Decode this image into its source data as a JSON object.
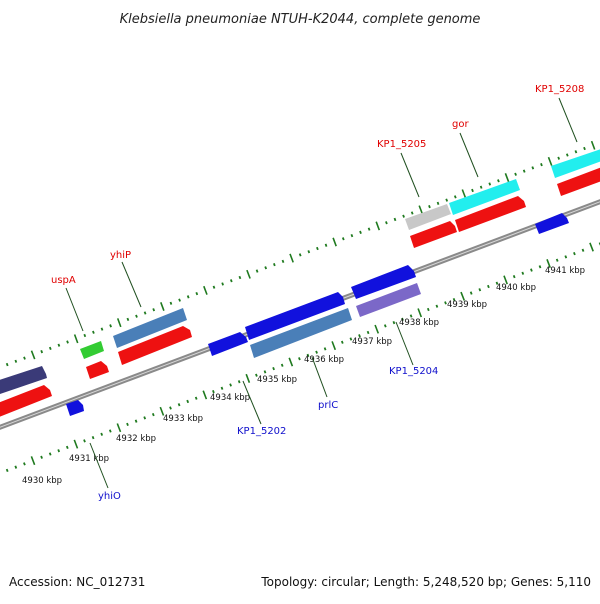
{
  "title": "Klebsiella pneumoniae NTUH-K2044, complete genome",
  "footer": {
    "accession": "Accession: NC_012731",
    "stats": "Topology: circular; Length: 5,248,520 bp; Genes: 5,110"
  },
  "colors": {
    "backbone": "#8a8a8a",
    "tick": "#1f7a1f",
    "label_top": "#e00000",
    "label_bottom": "#1010cc",
    "feature_red": "#ee1111",
    "feature_blue": "#1111dd",
    "feature_steel": "#4a7fb8",
    "feature_cyan": "#22eeee",
    "feature_green": "#33cc33",
    "feature_gray": "#c8c8c8",
    "feature_lavender": "#7b68c8",
    "feature_navy": "#3a3a78"
  },
  "scale": {
    "kbp_labels": [
      "4930 kbp",
      "4931 kbp",
      "4932 kbp",
      "4933 kbp",
      "4934 kbp",
      "4935 kbp",
      "4936 kbp",
      "4937 kbp",
      "4938 kbp",
      "4939 kbp",
      "4940 kbp",
      "4941 kbp"
    ]
  },
  "gene_labels_top": [
    "uspA",
    "yhiP",
    "KP1_5205",
    "gor",
    "KP1_5208"
  ],
  "gene_labels_bottom": [
    "yhiO",
    "KP1_5202",
    "prlC",
    "KP1_5204"
  ]
}
